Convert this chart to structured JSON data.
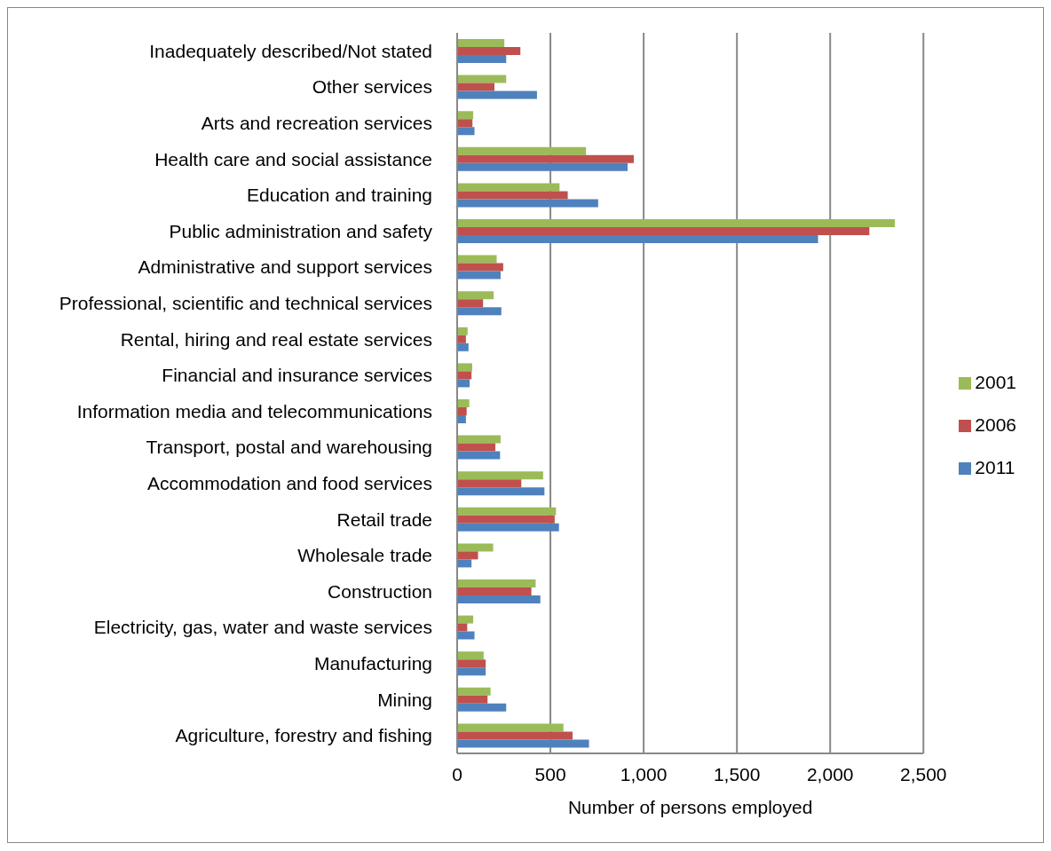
{
  "chart_data": {
    "type": "bar",
    "orientation": "horizontal",
    "categories": [
      "Inadequately described/Not stated",
      "Other services",
      "Arts and recreation services",
      "Health care and social assistance",
      "Education and training",
      "Public administration and safety",
      "Administrative and support services",
      "Professional, scientific and technical services",
      "Rental, hiring and real estate services",
      "Financial and insurance services",
      "Information media and telecommunications",
      "Transport, postal and warehousing",
      "Accommodation and food services",
      "Retail trade",
      "Wholesale trade",
      "Construction",
      "Electricity, gas, water and waste services",
      "Manufacturing",
      "Mining",
      "Agriculture, forestry and fishing"
    ],
    "series": [
      {
        "name": "2001",
        "color": "#9bbb59",
        "values": [
          253,
          263,
          86,
          691,
          549,
          2347,
          212,
          196,
          56,
          81,
          65,
          233,
          461,
          530,
          193,
          421,
          86,
          142,
          179,
          570
        ]
      },
      {
        "name": "2006",
        "color": "#c0504d",
        "values": [
          339,
          200,
          82,
          947,
          593,
          2210,
          247,
          139,
          47,
          77,
          51,
          205,
          344,
          523,
          112,
          398,
          54,
          153,
          163,
          619
        ]
      },
      {
        "name": "2011",
        "color": "#4f81bd",
        "values": [
          263,
          428,
          93,
          914,
          756,
          1935,
          233,
          237,
          61,
          67,
          47,
          230,
          468,
          546,
          77,
          446,
          93,
          153,
          263,
          707
        ]
      }
    ],
    "xlabel": "Number of persons employed",
    "xlim": [
      0,
      2500
    ],
    "xticks": [
      0,
      500,
      {
        "value": 1000,
        "label": "1,000"
      },
      {
        "value": 1500,
        "label": "1,500"
      },
      {
        "value": 2000,
        "label": "2,000"
      },
      {
        "value": 2500,
        "label": "2,500"
      }
    ],
    "grid": "x",
    "legend": "right"
  }
}
